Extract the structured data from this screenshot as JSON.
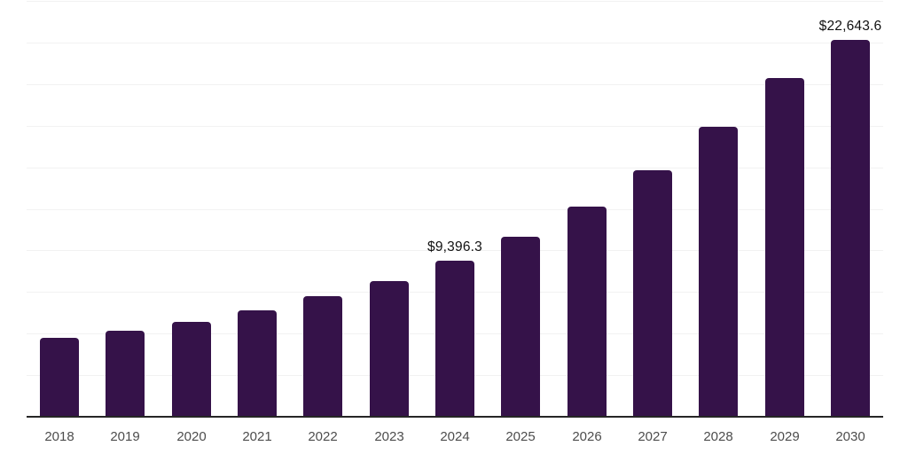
{
  "chart_data": {
    "type": "bar",
    "title": "",
    "xlabel": "",
    "ylabel": "",
    "categories": [
      "2018",
      "2019",
      "2020",
      "2021",
      "2022",
      "2023",
      "2024",
      "2025",
      "2026",
      "2027",
      "2028",
      "2029",
      "2030"
    ],
    "values": [
      4740,
      5170,
      5700,
      6400,
      7250,
      8160,
      9396.3,
      10820,
      12630,
      14820,
      17430,
      20360,
      22643.6
    ],
    "labeled_points": [
      {
        "category": "2024",
        "label": "$9,396.3"
      },
      {
        "category": "2030",
        "label": "$22,643.6"
      }
    ],
    "ylim": [
      0,
      25000
    ],
    "grid_interval": 2500,
    "grid": true,
    "legend_position": "none",
    "y_axis_labels_visible": false
  },
  "style": {
    "bar_color": "#351249",
    "grid_color": "#f2f2f2",
    "axis_color": "#262626",
    "tick_label_color": "#4d4d4d",
    "data_label_color": "#111111",
    "background_color": "#ffffff"
  }
}
